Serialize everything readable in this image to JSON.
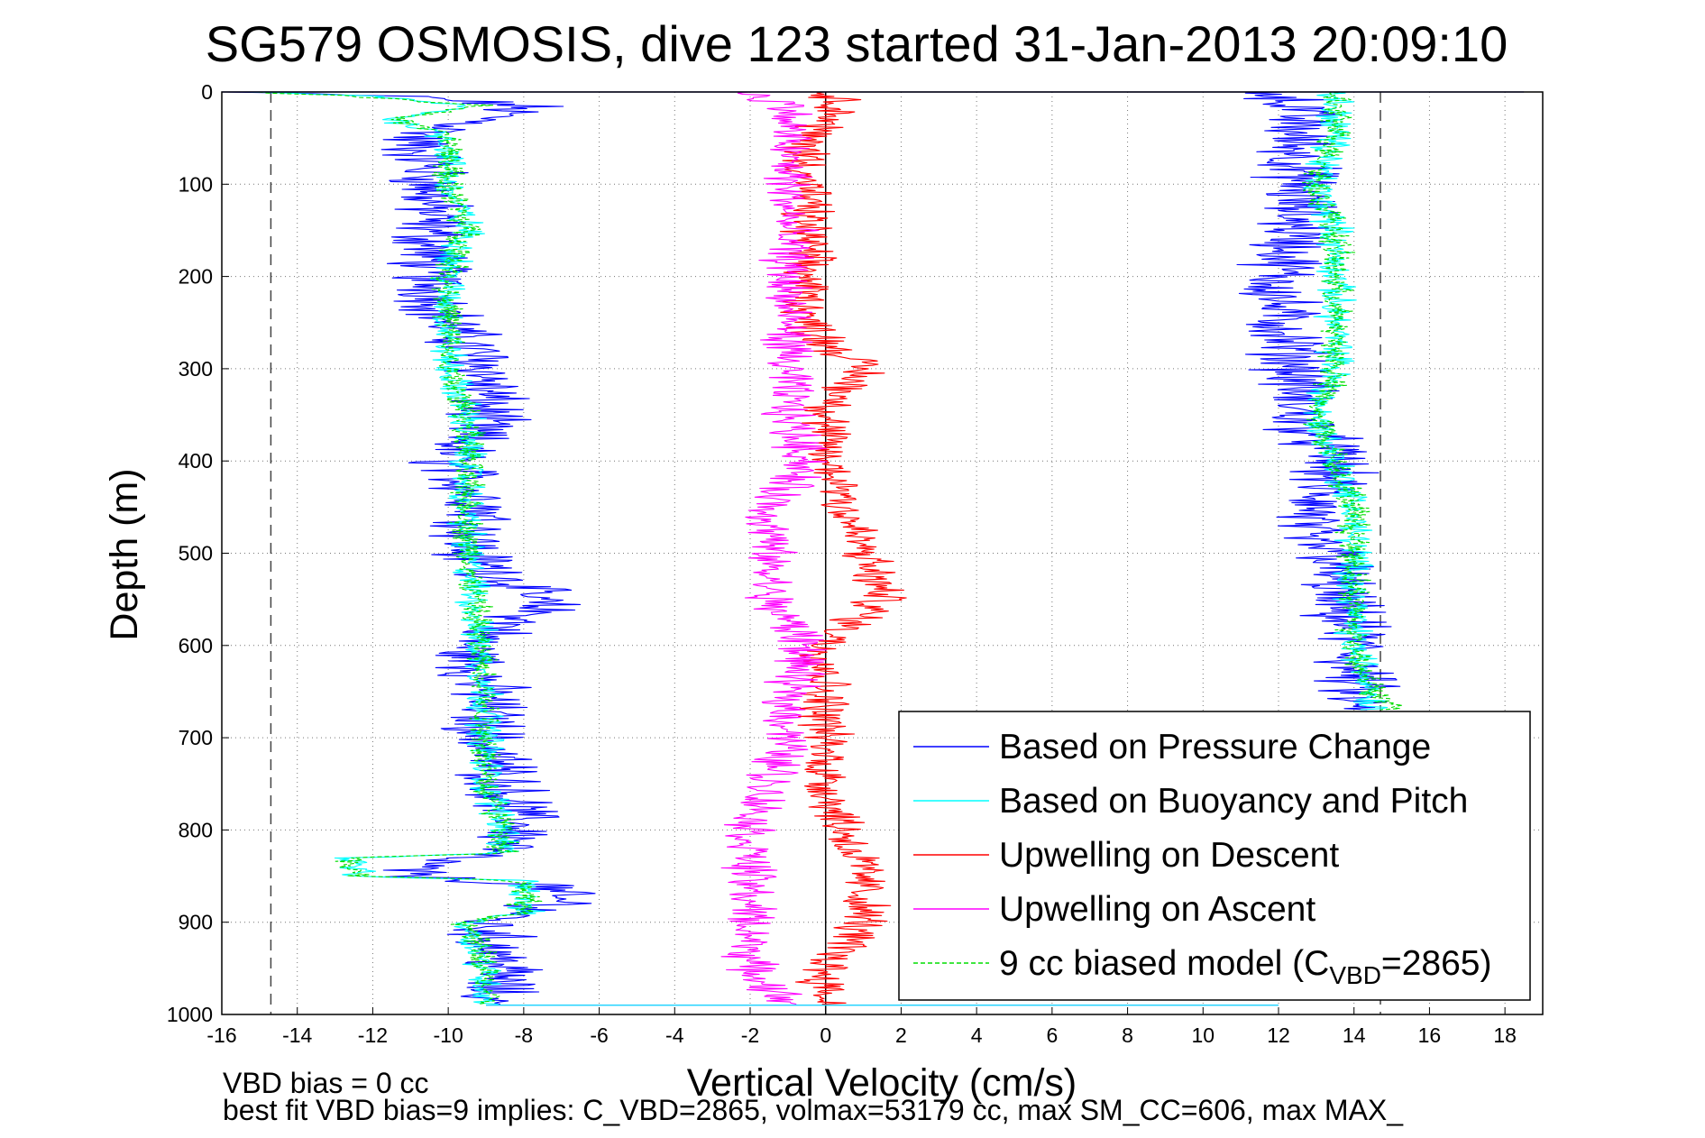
{
  "chart_data": {
    "type": "line",
    "title": "SG579 OSMOSIS, dive 123 started 31-Jan-2013 20:09:10",
    "xlabel": "Vertical Velocity (cm/s)",
    "ylabel": "Depth (m)",
    "xlim": [
      -16,
      19
    ],
    "ylim": [
      0,
      1000
    ],
    "y_reversed": true,
    "grid": true,
    "legend_position": "bottom-right",
    "x_ticks": [
      "-16",
      "-14",
      "-12",
      "-10",
      "-8",
      "-6",
      "-4",
      "-2",
      "0",
      "2",
      "4",
      "6",
      "8",
      "10",
      "12",
      "14",
      "16",
      "18"
    ],
    "y_ticks": [
      "0",
      "100",
      "200",
      "300",
      "400",
      "500",
      "600",
      "700",
      "800",
      "900",
      "1000"
    ],
    "reference_lines": [
      {
        "kind": "dashed-vertical",
        "x": -14.7
      },
      {
        "kind": "dashed-vertical",
        "x": 14.7
      },
      {
        "kind": "solid-vertical",
        "x": 0
      }
    ],
    "legend": [
      {
        "label": "Based on Pressure Change",
        "color": "#0000ff",
        "style": "solid"
      },
      {
        "label": "Based on Buoyancy and Pitch",
        "color": "#00ffff",
        "style": "solid"
      },
      {
        "label": "Upwelling on Descent",
        "color": "#ff0000",
        "style": "solid"
      },
      {
        "label": "Upwelling on Ascent",
        "color": "#ff00ff",
        "style": "solid"
      },
      {
        "label_prefix": "9 cc biased model (C",
        "label_sub": "VBD",
        "label_suffix": "=2865)",
        "color": "#00dd00",
        "style": "dashed"
      }
    ],
    "series": [
      {
        "name": "Based on Pressure Change",
        "color": "#0000ff",
        "noise": 0.9,
        "segments": [
          {
            "depth": [
              0,
              5,
              15,
              30,
              50,
              80,
              100,
              150,
              200,
              250,
              300,
              350,
              400,
              450,
              500,
              540,
              560,
              600,
              650,
              700,
              750,
              800,
              820,
              840,
              850,
              860,
              880,
              900,
              950,
              990
            ],
            "value": [
              -16,
              -11,
              -8,
              -9,
              -11,
              -10.5,
              -10.5,
              -10.5,
              -10.5,
              -10,
              -9,
              -9,
              -10,
              -9,
              -9.5,
              -8,
              -7.5,
              -9.5,
              -9,
              -9,
              -8.5,
              -8,
              -8.5,
              -11,
              -11,
              -7.5,
              -7,
              -9,
              -8.5,
              -9
            ]
          },
          {
            "depth": [
              0,
              15,
              50,
              100,
              150,
              200,
              240,
              300,
              350,
              400,
              450,
              480,
              500,
              550,
              600,
              650,
              670
            ],
            "value": [
              12,
              12.5,
              12.5,
              12.5,
              12.5,
              12,
              12,
              12.5,
              12.5,
              13.5,
              13,
              12.5,
              13.5,
              13.5,
              14,
              14,
              14
            ]
          }
        ]
      },
      {
        "name": "Based on Buoyancy and Pitch",
        "color": "#00ffff",
        "noise": 0.4,
        "segments": [
          {
            "depth": [
              0,
              5,
              15,
              30,
              40,
              50,
              100,
              150,
              200,
              250,
              300,
              350,
              400,
              450,
              500,
              550,
              600,
              650,
              700,
              750,
              800,
              825,
              830,
              850,
              855,
              860,
              890,
              900,
              950,
              990
            ],
            "value": [
              -15,
              -12,
              -9.5,
              -11.5,
              -10.5,
              -10,
              -10,
              -9.5,
              -10,
              -10,
              -10,
              -9.5,
              -9.5,
              -9.5,
              -9.5,
              -9.3,
              -9.2,
              -9,
              -9,
              -9,
              -8.5,
              -8.5,
              -12.5,
              -12.5,
              -8,
              -8,
              -8,
              -9.5,
              -9,
              -9
            ]
          },
          {
            "depth": [
              0,
              15,
              50,
              100,
              150,
              200,
              250,
              300,
              350,
              400,
              450,
              500,
              550,
              600,
              650,
              670
            ],
            "value": [
              13.5,
              13.5,
              13.5,
              13,
              13.5,
              13.5,
              13.5,
              13.5,
              13,
              13.5,
              14,
              14,
              14,
              14,
              14.5,
              14.5
            ]
          }
        ]
      },
      {
        "name": "Upwelling on Descent",
        "color": "#ff0000",
        "noise": 0.55,
        "segments": [
          {
            "depth": [
              0,
              15,
              50,
              100,
              150,
              200,
              250,
              270,
              300,
              350,
              400,
              430,
              450,
              500,
              550,
              600,
              650,
              700,
              750,
              800,
              850,
              900,
              950,
              990
            ],
            "value": [
              0,
              0.5,
              -0.5,
              -0.5,
              -0.5,
              -0.5,
              -0.5,
              0,
              1,
              0,
              0,
              0.5,
              0.5,
              1,
              1.5,
              0,
              0,
              0,
              0,
              0.5,
              1,
              1,
              0,
              0
            ]
          }
        ]
      },
      {
        "name": "Upwelling on Ascent",
        "color": "#ff00ff",
        "noise": 0.55,
        "segments": [
          {
            "depth": [
              0,
              15,
              50,
              100,
              150,
              200,
              250,
              300,
              350,
              400,
              450,
              500,
              550,
              600,
              650,
              700,
              750,
              800,
              850,
              900,
              950,
              990
            ],
            "value": [
              -2,
              -1,
              -1,
              -1,
              -1,
              -1,
              -1,
              -1,
              -1,
              -0.5,
              -1.5,
              -1.5,
              -1.5,
              -0.5,
              -1,
              -1,
              -1.5,
              -2,
              -2,
              -2,
              -2,
              -1
            ]
          }
        ]
      },
      {
        "name": "9 cc biased model (CVBD=2865)",
        "color": "#00dd00",
        "dashed": true,
        "noise": 0.35,
        "segments": [
          {
            "depth": [
              0,
              5,
              15,
              30,
              40,
              50,
              100,
              150,
              200,
              250,
              300,
              350,
              400,
              450,
              500,
              550,
              600,
              650,
              700,
              750,
              800,
              825,
              830,
              850,
              855,
              860,
              890,
              900,
              950,
              990
            ],
            "value": [
              -15,
              -12.5,
              -9,
              -11.5,
              -10.5,
              -10,
              -10,
              -9.5,
              -10,
              -10,
              -10,
              -9.5,
              -9.5,
              -9.5,
              -9.5,
              -9.3,
              -9.2,
              -9,
              -9,
              -9,
              -8.5,
              -8.5,
              -12.5,
              -12.5,
              -8,
              -8,
              -8,
              -9.5,
              -9,
              -9
            ]
          },
          {
            "depth": [
              0,
              15,
              50,
              100,
              150,
              200,
              250,
              300,
              350,
              400,
              450,
              500,
              550,
              600,
              650,
              670
            ],
            "value": [
              13.5,
              13.5,
              13.5,
              13,
              13.5,
              13.5,
              13.5,
              13.5,
              13,
              13.5,
              14,
              14,
              14,
              14,
              14.5,
              15
            ]
          }
        ]
      }
    ]
  },
  "footer": {
    "line1": "VBD bias = 0 cc",
    "line2": "best fit VBD bias=9 implies: C_VBD=2865, volmax=53179 cc, max SM_CC=606, max MAX_"
  }
}
